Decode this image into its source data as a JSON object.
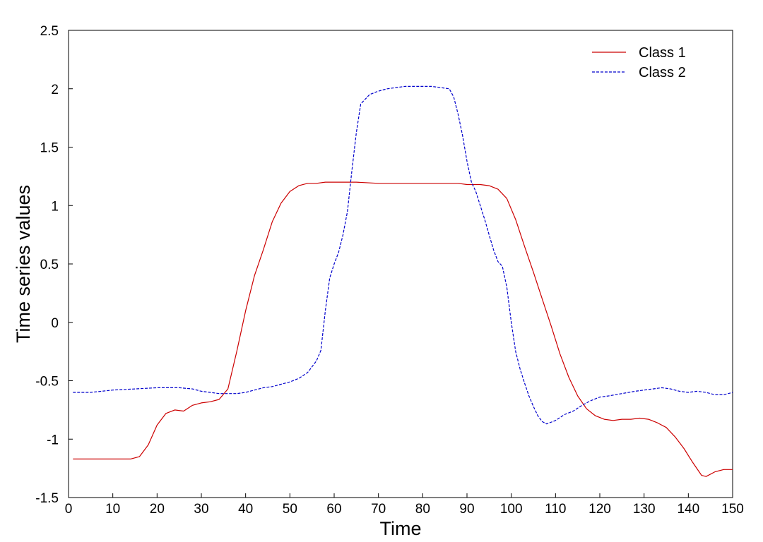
{
  "chart_data": {
    "type": "line",
    "title": "",
    "xlabel": "Time",
    "ylabel": "Time series values",
    "xlim": [
      0,
      150
    ],
    "ylim": [
      -1.5,
      2.5
    ],
    "xticks": [
      0,
      10,
      20,
      30,
      40,
      50,
      60,
      70,
      80,
      90,
      100,
      110,
      120,
      130,
      140,
      150
    ],
    "yticks": [
      -1.5,
      -1,
      -0.5,
      0,
      0.5,
      1,
      1.5,
      2,
      2.5
    ],
    "xtick_labels": [
      "0",
      "10",
      "20",
      "30",
      "40",
      "50",
      "60",
      "70",
      "80",
      "90",
      "100",
      "110",
      "120",
      "130",
      "140",
      "150"
    ],
    "ytick_labels": [
      "-1.5",
      "-1",
      "-0.5",
      "0",
      "0.5",
      "1",
      "1.5",
      "2",
      "2.5"
    ],
    "grid": false,
    "legend_position": "top-right",
    "series": [
      {
        "name": "Class 1",
        "color": "#cc0000",
        "style": "solid",
        "x": [
          1,
          5,
          10,
          14,
          16,
          18,
          20,
          22,
          24,
          26,
          28,
          30,
          32,
          34,
          36,
          38,
          40,
          42,
          44,
          46,
          48,
          50,
          52,
          54,
          56,
          58,
          60,
          65,
          70,
          75,
          80,
          85,
          88,
          90,
          93,
          95,
          97,
          99,
          101,
          103,
          105,
          107,
          109,
          111,
          113,
          115,
          117,
          119,
          121,
          123,
          125,
          127,
          129,
          131,
          133,
          135,
          137,
          139,
          141,
          143,
          144,
          146,
          148,
          150
        ],
        "y": [
          -1.17,
          -1.17,
          -1.17,
          -1.17,
          -1.15,
          -1.05,
          -0.88,
          -0.78,
          -0.75,
          -0.76,
          -0.71,
          -0.69,
          -0.68,
          -0.66,
          -0.57,
          -0.25,
          0.1,
          0.4,
          0.62,
          0.86,
          1.02,
          1.12,
          1.17,
          1.19,
          1.19,
          1.2,
          1.2,
          1.2,
          1.19,
          1.19,
          1.19,
          1.19,
          1.19,
          1.18,
          1.18,
          1.17,
          1.14,
          1.06,
          0.88,
          0.65,
          0.43,
          0.2,
          -0.03,
          -0.27,
          -0.47,
          -0.63,
          -0.74,
          -0.8,
          -0.83,
          -0.84,
          -0.83,
          -0.83,
          -0.82,
          -0.83,
          -0.86,
          -0.9,
          -0.98,
          -1.08,
          -1.2,
          -1.31,
          -1.32,
          -1.28,
          -1.26,
          -1.26
        ]
      },
      {
        "name": "Class 2",
        "color": "#0000cc",
        "style": "dashed",
        "x": [
          1,
          5,
          10,
          15,
          20,
          25,
          28,
          30,
          32,
          34,
          36,
          38,
          40,
          42,
          44,
          46,
          48,
          50,
          52,
          54,
          56,
          57,
          58,
          59,
          60,
          61,
          62,
          63,
          64,
          65,
          66,
          68,
          70,
          72,
          74,
          76,
          78,
          80,
          82,
          84,
          86,
          87,
          88,
          89,
          90,
          91,
          92,
          93,
          94,
          95,
          96,
          97,
          98,
          99,
          100,
          101,
          102,
          103,
          104,
          105,
          106,
          107,
          108,
          110,
          112,
          114,
          116,
          118,
          120,
          122,
          125,
          128,
          130,
          132,
          134,
          136,
          138,
          140,
          142,
          144,
          146,
          148,
          150
        ],
        "y": [
          -0.6,
          -0.6,
          -0.58,
          -0.57,
          -0.56,
          -0.56,
          -0.57,
          -0.59,
          -0.6,
          -0.61,
          -0.61,
          -0.61,
          -0.6,
          -0.58,
          -0.56,
          -0.55,
          -0.53,
          -0.51,
          -0.48,
          -0.43,
          -0.33,
          -0.24,
          0.1,
          0.38,
          0.5,
          0.6,
          0.75,
          0.95,
          1.3,
          1.62,
          1.87,
          1.95,
          1.98,
          2.0,
          2.01,
          2.02,
          2.02,
          2.02,
          2.02,
          2.01,
          2.0,
          1.93,
          1.78,
          1.6,
          1.38,
          1.2,
          1.12,
          1.0,
          0.88,
          0.75,
          0.62,
          0.52,
          0.48,
          0.3,
          0.0,
          -0.25,
          -0.4,
          -0.52,
          -0.63,
          -0.72,
          -0.8,
          -0.85,
          -0.87,
          -0.84,
          -0.79,
          -0.76,
          -0.71,
          -0.67,
          -0.64,
          -0.63,
          -0.61,
          -0.59,
          -0.58,
          -0.57,
          -0.56,
          -0.57,
          -0.59,
          -0.6,
          -0.59,
          -0.6,
          -0.62,
          -0.62,
          -0.6
        ]
      }
    ]
  }
}
